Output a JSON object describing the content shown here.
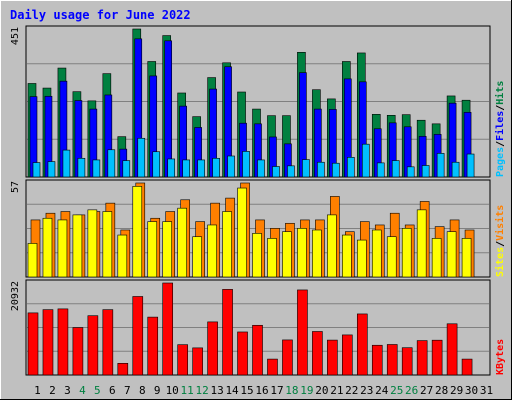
{
  "chart_data": [
    {
      "type": "bar",
      "title": "Daily usage for June 2022",
      "ymax_label": "451",
      "categories": [
        "1",
        "2",
        "3",
        "4",
        "5",
        "6",
        "7",
        "8",
        "9",
        "10",
        "11",
        "12",
        "13",
        "14",
        "15",
        "16",
        "17",
        "18",
        "19",
        "20",
        "21",
        "22",
        "23",
        "24",
        "25",
        "26",
        "27",
        "28",
        "29",
        "30",
        "31"
      ],
      "weekend_days": [
        "4",
        "5",
        "11",
        "12",
        "18",
        "19",
        "25",
        "26"
      ],
      "series": [
        {
          "name": "Hits",
          "color": "#008040",
          "values": [
            285,
            271,
            332,
            260,
            232,
            315,
            123,
            451,
            352,
            431,
            256,
            184,
            303,
            348,
            259,
            207,
            187,
            187,
            380,
            266,
            238,
            352,
            378,
            191,
            188,
            190,
            173,
            162,
            247,
            234,
            0
          ]
        },
        {
          "name": "Files",
          "color": "#0000ff",
          "values": [
            245,
            246,
            292,
            233,
            207,
            250,
            85,
            421,
            308,
            415,
            216,
            151,
            268,
            336,
            164,
            162,
            122,
            101,
            318,
            207,
            206,
            299,
            290,
            147,
            165,
            153,
            124,
            130,
            225,
            197,
            0
          ]
        },
        {
          "name": "Pages",
          "color": "#00c0ff",
          "values": [
            44,
            47,
            82,
            57,
            52,
            83,
            50,
            118,
            77,
            55,
            52,
            52,
            57,
            64,
            78,
            52,
            32,
            34,
            53,
            45,
            42,
            60,
            100,
            43,
            50,
            31,
            35,
            72,
            45,
            70,
            0
          ]
        }
      ],
      "legend": [
        "Pages",
        "/",
        "Files",
        "/",
        "Hits"
      ]
    },
    {
      "type": "bar",
      "ymax_label": "57",
      "categories": [
        "1",
        "2",
        "3",
        "4",
        "5",
        "6",
        "7",
        "8",
        "9",
        "10",
        "11",
        "12",
        "13",
        "14",
        "15",
        "16",
        "17",
        "18",
        "19",
        "20",
        "21",
        "22",
        "23",
        "24",
        "25",
        "26",
        "27",
        "28",
        "29",
        "30",
        "31"
      ],
      "series": [
        {
          "name": "Visits",
          "color": "#ff8000",
          "values": [
            34,
            38,
            39,
            37,
            39,
            44,
            28,
            56,
            35,
            39,
            46,
            33,
            44,
            47,
            56,
            34,
            29,
            32,
            34,
            34,
            48,
            27,
            33,
            31,
            38,
            31,
            45,
            30,
            34,
            28,
            0
          ]
        },
        {
          "name": "Sites",
          "color": "#ffff00",
          "values": [
            20,
            35,
            34,
            37,
            40,
            39,
            25,
            54,
            33,
            33,
            41,
            24,
            31,
            39,
            53,
            26,
            23,
            27,
            29,
            28,
            37,
            25,
            22,
            28,
            24,
            29,
            40,
            23,
            27,
            23,
            0
          ]
        }
      ],
      "legend": [
        "Sites",
        "/",
        "Visits"
      ]
    },
    {
      "type": "bar",
      "ymax_label": "20932",
      "categories": [
        "1",
        "2",
        "3",
        "4",
        "5",
        "6",
        "7",
        "8",
        "9",
        "10",
        "11",
        "12",
        "13",
        "14",
        "15",
        "16",
        "17",
        "18",
        "19",
        "20",
        "21",
        "22",
        "23",
        "24",
        "25",
        "26",
        "27",
        "28",
        "29",
        "30",
        "31"
      ],
      "series": [
        {
          "name": "KBytes",
          "color": "#ff0000",
          "values": [
            14130,
            14870,
            15040,
            10800,
            13490,
            14870,
            2660,
            17860,
            13170,
            20930,
            6900,
            6170,
            12080,
            19480,
            9790,
            11310,
            3620,
            7980,
            19350,
            9900,
            7940,
            9120,
            13890,
            6770,
            6940,
            6210,
            7830,
            7920,
            11650,
            3620,
            0
          ]
        }
      ],
      "legend": [
        "KBytes"
      ]
    }
  ]
}
